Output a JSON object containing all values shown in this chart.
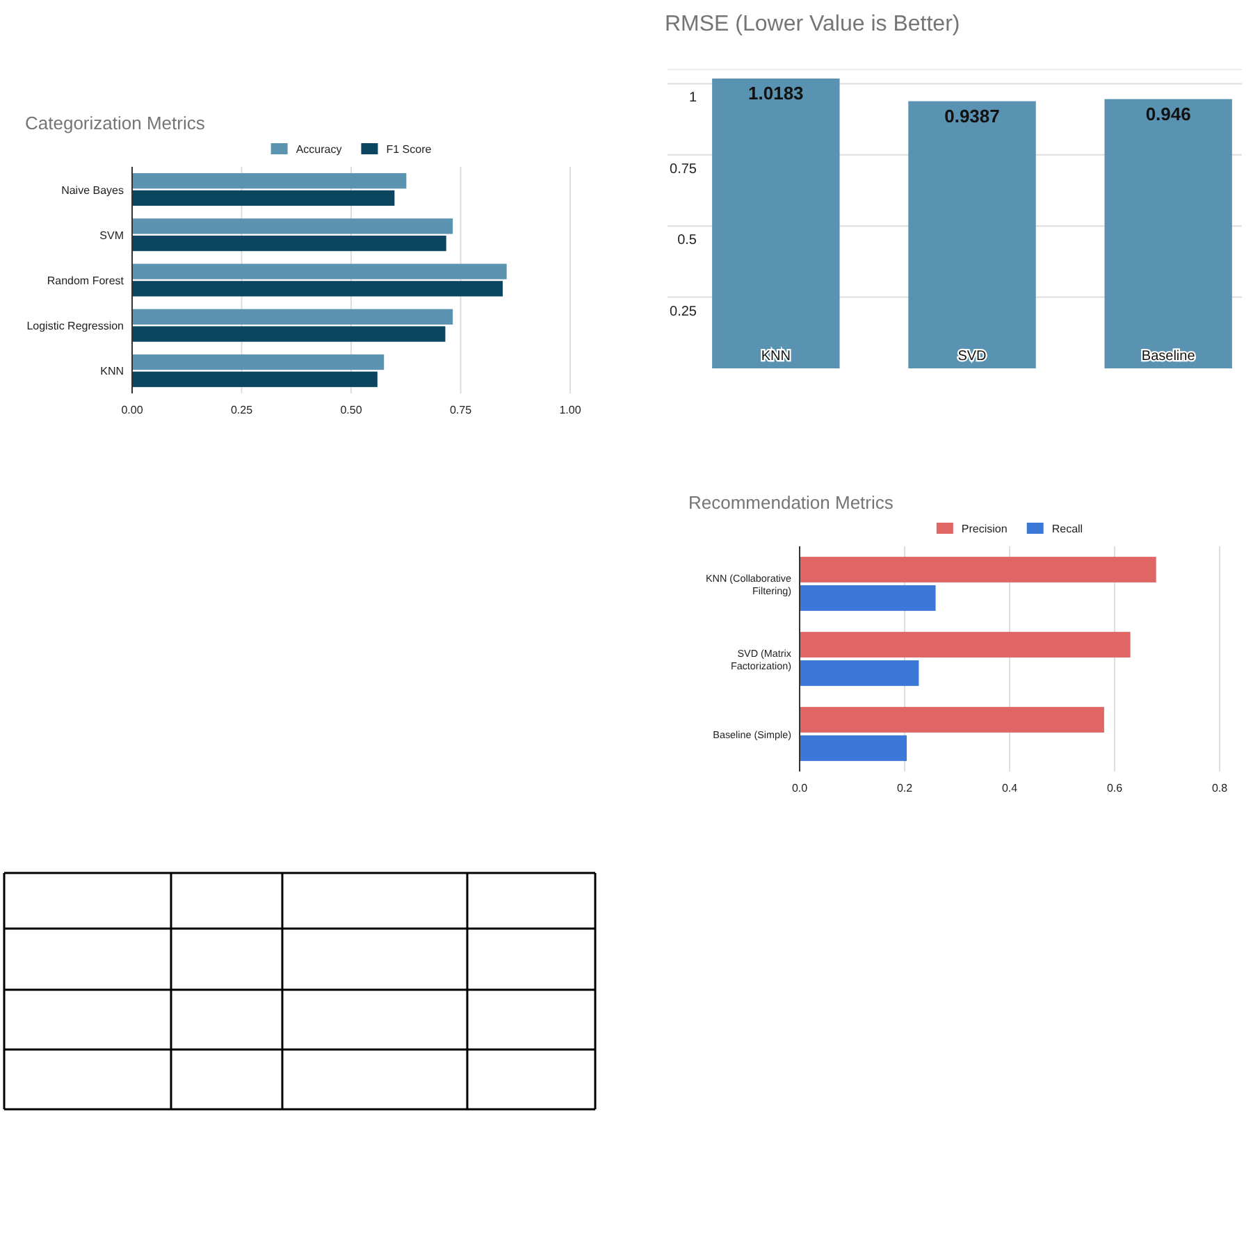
{
  "chart_data": [
    {
      "type": "bar",
      "orientation": "horizontal",
      "title": "Categorization Metrics",
      "categories": [
        "Naive Bayes",
        "SVM",
        "Random Forest",
        "Logistic Regression",
        "KNN"
      ],
      "series": [
        {
          "name": "Accuracy",
          "color": "#5b93b0",
          "values": [
            0.626,
            0.732,
            0.855,
            0.732,
            0.575
          ]
        },
        {
          "name": "F1 Score",
          "color": "#0b4560",
          "values": [
            0.599,
            0.717,
            0.846,
            0.715,
            0.56
          ]
        }
      ],
      "xlim": [
        0,
        1
      ],
      "xticks": [
        {
          "value": 0,
          "label": "0.00"
        },
        {
          "value": 0.25,
          "label": "0.25"
        },
        {
          "value": 0.5,
          "label": "0.50"
        },
        {
          "value": 0.75,
          "label": "0.75"
        },
        {
          "value": 1,
          "label": "1.00"
        }
      ],
      "grid": "x",
      "legend": "top"
    },
    {
      "type": "bar",
      "title": "RMSE (Lower Value is Better)",
      "categories": [
        "KNN",
        "SVD",
        "Baseline"
      ],
      "series": [
        {
          "color": "#5a93b1",
          "values": [
            1.0183,
            0.9387,
            0.946
          ]
        }
      ],
      "ylim": [
        0,
        1.05
      ],
      "yticks": [
        0.25,
        0.5,
        0.75,
        1
      ],
      "grid": "y",
      "data_labels": true
    },
    {
      "type": "bar",
      "orientation": "horizontal",
      "title": "Recommendation Metrics",
      "categories": [
        "KNN (Collaborative Filtering)",
        "SVD (Matrix Factorization)",
        "Baseline (Simple)"
      ],
      "series": [
        {
          "name": "Precision",
          "color": "#e06666",
          "values": [
            0.679,
            0.63,
            0.58
          ]
        },
        {
          "name": "Recall",
          "color": "#3c78d8",
          "values": [
            0.259,
            0.227,
            0.204
          ]
        }
      ],
      "xlim": [
        0,
        0.8
      ],
      "xticks": [
        {
          "value": 0,
          "label": "0.0"
        },
        {
          "value": 0.2,
          "label": "0.2"
        },
        {
          "value": 0.4,
          "label": "0.4"
        },
        {
          "value": 0.6,
          "label": "0.6"
        },
        {
          "value": 0.8,
          "label": "0.8"
        }
      ],
      "grid": "x",
      "legend": "top"
    }
  ]
}
